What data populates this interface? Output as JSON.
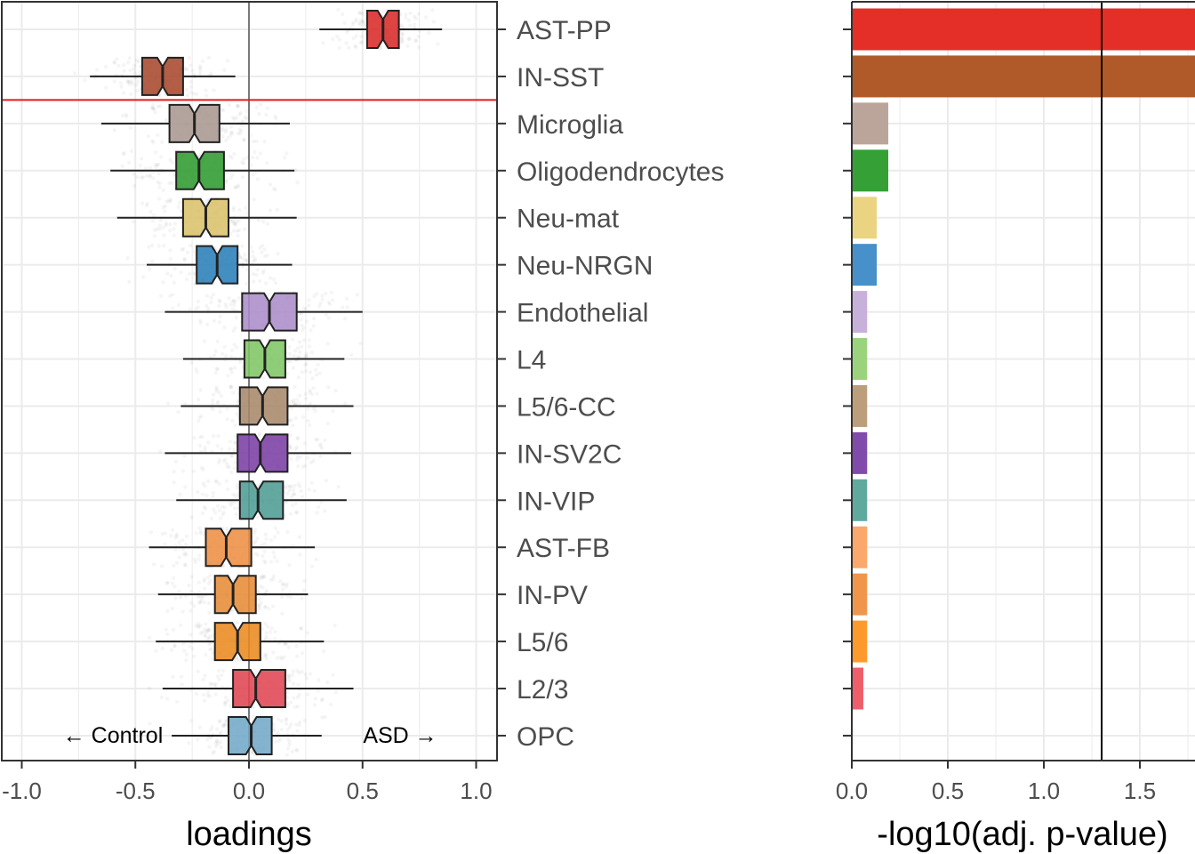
{
  "chart_data": [
    {
      "type": "boxplot",
      "xlabel": "loadings",
      "xlim": [
        -1.1,
        1.1
      ],
      "xticks": [
        "-1.0",
        "-0.5",
        "0.0",
        "0.5",
        "1.0"
      ],
      "grid": true,
      "reference_lines": {
        "vertical_at_x": 0,
        "horizontal_between": [
          "IN-SST",
          "Microglia"
        ]
      },
      "annotations": {
        "left": "← Control",
        "right": "ASD →"
      },
      "categories": [
        "AST-PP",
        "IN-SST",
        "Microglia",
        "Oligodendrocytes",
        "Neu-mat",
        "Neu-NRGN",
        "Endothelial",
        "L4",
        "L5/6-CC",
        "IN-SV2C",
        "IN-VIP",
        "AST-FB",
        "IN-PV",
        "L5/6",
        "L2/3",
        "OPC"
      ],
      "boxes": [
        {
          "min": 0.31,
          "q1": 0.52,
          "median": 0.59,
          "q3": 0.66,
          "max": 0.85
        },
        {
          "min": -0.7,
          "q1": -0.47,
          "median": -0.38,
          "q3": -0.29,
          "max": -0.06
        },
        {
          "min": -0.65,
          "q1": -0.35,
          "median": -0.24,
          "q3": -0.13,
          "max": 0.18
        },
        {
          "min": -0.61,
          "q1": -0.32,
          "median": -0.22,
          "q3": -0.11,
          "max": 0.2
        },
        {
          "min": -0.58,
          "q1": -0.29,
          "median": -0.19,
          "q3": -0.09,
          "max": 0.21
        },
        {
          "min": -0.45,
          "q1": -0.23,
          "median": -0.14,
          "q3": -0.05,
          "max": 0.19
        },
        {
          "min": -0.37,
          "q1": -0.03,
          "median": 0.09,
          "q3": 0.21,
          "max": 0.5
        },
        {
          "min": -0.29,
          "q1": -0.02,
          "median": 0.07,
          "q3": 0.16,
          "max": 0.42
        },
        {
          "min": -0.3,
          "q1": -0.04,
          "median": 0.06,
          "q3": 0.17,
          "max": 0.46
        },
        {
          "min": -0.37,
          "q1": -0.05,
          "median": 0.05,
          "q3": 0.17,
          "max": 0.45
        },
        {
          "min": -0.32,
          "q1": -0.04,
          "median": 0.04,
          "q3": 0.15,
          "max": 0.43
        },
        {
          "min": -0.44,
          "q1": -0.19,
          "median": -0.1,
          "q3": 0.01,
          "max": 0.29
        },
        {
          "min": -0.4,
          "q1": -0.15,
          "median": -0.07,
          "q3": 0.03,
          "max": 0.26
        },
        {
          "min": -0.41,
          "q1": -0.15,
          "median": -0.05,
          "q3": 0.05,
          "max": 0.33
        },
        {
          "min": -0.38,
          "q1": -0.07,
          "median": 0.03,
          "q3": 0.16,
          "max": 0.46
        },
        {
          "min": -0.34,
          "q1": -0.09,
          "median": 0.01,
          "q3": 0.1,
          "max": 0.32
        }
      ],
      "colors": [
        "#D82A28",
        "#A8482D",
        "#A8978F",
        "#2F9B2F",
        "#D9C26A",
        "#2A7FB8",
        "#AB8DC9",
        "#7FC665",
        "#A8896B",
        "#7B3FA4",
        "#4E9D94",
        "#EE9044",
        "#E78C35",
        "#EB8A1F",
        "#E04652",
        "#72A8C8"
      ]
    },
    {
      "type": "bar",
      "orientation": "horizontal",
      "xlabel": "-log10(adj. p-value)",
      "xlim": [
        0,
        1.8
      ],
      "xticks": [
        "0.0",
        "0.5",
        "1.0",
        "1.5"
      ],
      "grid": true,
      "threshold_line": 1.301,
      "categories": [
        "AST-PP",
        "IN-SST",
        "Microglia",
        "Oligodendrocytes",
        "Neu-mat",
        "Neu-NRGN",
        "Endothelial",
        "L4",
        "L5/6-CC",
        "IN-SV2C",
        "IN-VIP",
        "AST-FB",
        "IN-PV",
        "L5/6",
        "L2/3",
        "OPC"
      ],
      "values": [
        1.8,
        1.8,
        0.19,
        0.19,
        0.13,
        0.13,
        0.08,
        0.08,
        0.08,
        0.08,
        0.08,
        0.08,
        0.08,
        0.08,
        0.06,
        0.005
      ],
      "colors": [
        "#E32F27",
        "#B05A2A",
        "#BBA59A",
        "#35A035",
        "#EBD481",
        "#4790C9",
        "#C7B1DA",
        "#9BD37D",
        "#BC9D7C",
        "#814BAB",
        "#60A99F",
        "#FBA86C",
        "#EF964C",
        "#FD9A2E",
        "#EE5F6B",
        "#9DC4DE"
      ]
    }
  ]
}
